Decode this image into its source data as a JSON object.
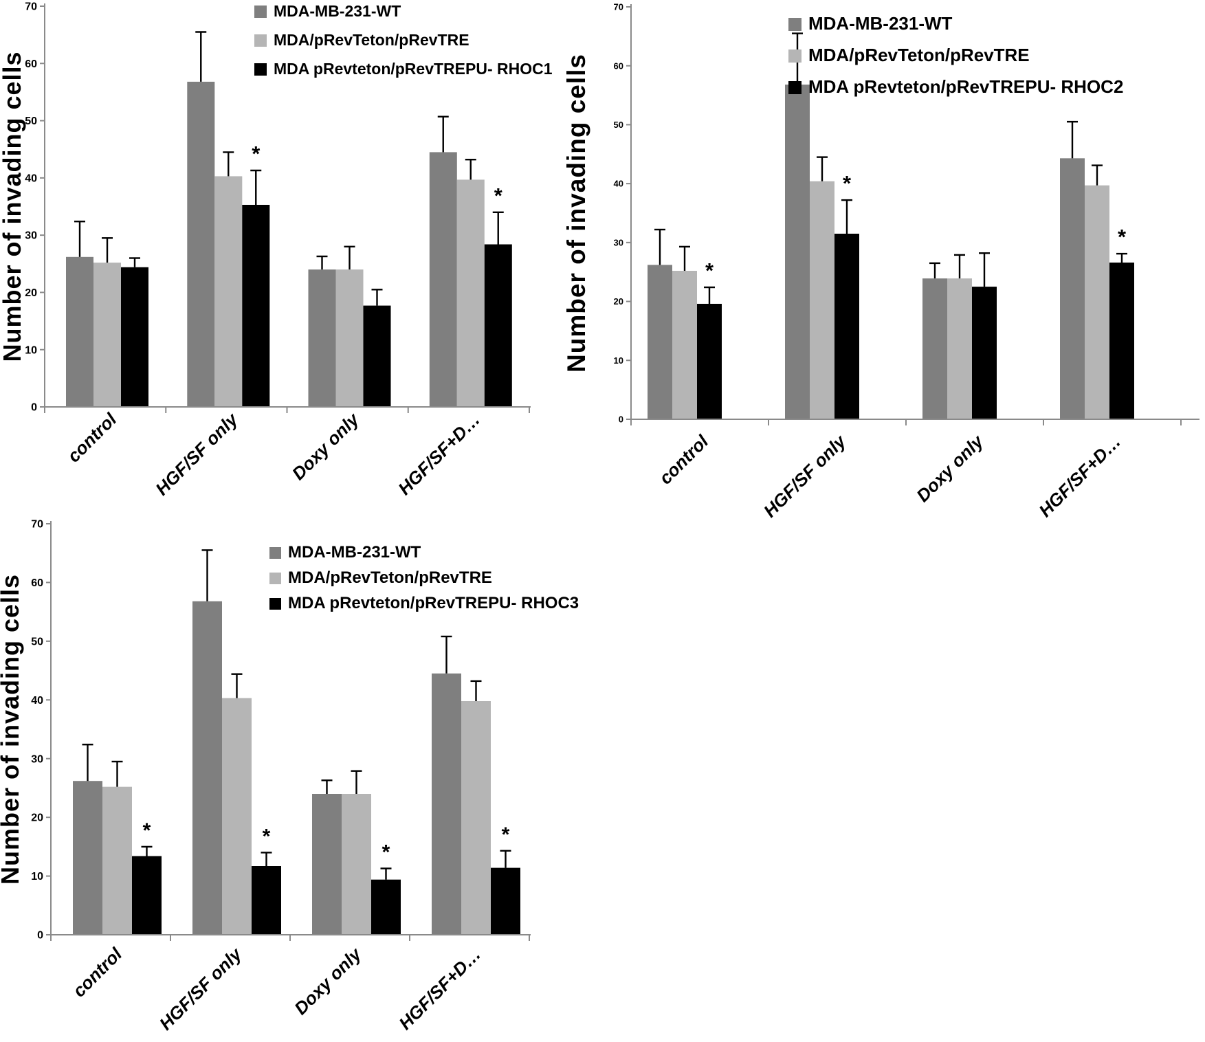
{
  "figure": {
    "description": "Three grouped bar charts of Matrigel invasion assay results with error bars and significance asterisks",
    "panels": 3
  },
  "colors": {
    "series": [
      "#7f7f7f",
      "#b5b5b5",
      "#000000"
    ],
    "axis": "#8a8a8a",
    "text": "#000000",
    "background": "#ffffff"
  },
  "chart_data": [
    {
      "id": "rhoc1",
      "type": "bar",
      "title": "",
      "xlabel": "",
      "ylabel": "Number of invading cells",
      "ylim": [
        0,
        70
      ],
      "yticks": [
        0,
        10,
        20,
        30,
        40,
        50,
        60,
        70
      ],
      "grid": false,
      "legend_position": "inside-top-right",
      "categories": [
        "control",
        "HGF/SF only",
        "Doxy only",
        "HGF/SF+D…"
      ],
      "series": [
        {
          "name": "MDA-MB-231-WT",
          "color": "#7f7f7f",
          "values": [
            26.2,
            56.8,
            24.0,
            44.5
          ],
          "errors_plus": [
            6.2,
            8.7,
            2.3,
            6.2
          ],
          "significance": [
            "",
            "",
            "",
            ""
          ]
        },
        {
          "name": "MDA/pRevTeton/pRevTRE",
          "color": "#b5b5b5",
          "values": [
            25.2,
            40.3,
            24.0,
            39.7
          ],
          "errors_plus": [
            4.3,
            4.2,
            4.0,
            3.5
          ],
          "significance": [
            "",
            "",
            "",
            ""
          ]
        },
        {
          "name": "MDA pRevteton/pRevTREPU- RHOC1",
          "color": "#000000",
          "values": [
            24.4,
            35.3,
            17.7,
            28.4
          ],
          "errors_plus": [
            1.6,
            6.0,
            2.8,
            5.6
          ],
          "significance": [
            "",
            "*",
            "",
            "*"
          ]
        }
      ]
    },
    {
      "id": "rhoc2",
      "type": "bar",
      "title": "",
      "xlabel": "",
      "ylabel": "Number of invading cells",
      "ylim": [
        0,
        70
      ],
      "yticks": [
        0,
        10,
        20,
        30,
        40,
        50,
        60,
        70
      ],
      "grid": false,
      "legend_position": "inside-top-right",
      "categories": [
        "control",
        "HGF/SF only",
        "Doxy only",
        "HGF/SF+D…"
      ],
      "series": [
        {
          "name": "MDA-MB-231-WT",
          "color": "#7f7f7f",
          "values": [
            26.2,
            56.8,
            23.9,
            44.3
          ],
          "errors_plus": [
            6.0,
            8.7,
            2.6,
            6.2
          ],
          "significance": [
            "",
            "",
            "",
            ""
          ]
        },
        {
          "name": "MDA/pRevTeton/pRevTRE",
          "color": "#b5b5b5",
          "values": [
            25.2,
            40.4,
            23.9,
            39.7
          ],
          "errors_plus": [
            4.1,
            4.1,
            4.0,
            3.4
          ],
          "significance": [
            "",
            "",
            "",
            ""
          ]
        },
        {
          "name": "MDA pRevteton/pRevTREPU- RHOC2",
          "color": "#000000",
          "values": [
            19.6,
            31.5,
            22.5,
            26.6
          ],
          "errors_plus": [
            2.8,
            5.7,
            5.7,
            1.5
          ],
          "significance": [
            "*",
            "*",
            "",
            "*"
          ]
        }
      ]
    },
    {
      "id": "rhoc3",
      "type": "bar",
      "title": "",
      "xlabel": "",
      "ylabel": "Number of invading cells",
      "ylim": [
        0,
        70
      ],
      "yticks": [
        0,
        10,
        20,
        30,
        40,
        50,
        60,
        70
      ],
      "grid": false,
      "legend_position": "inside-top-right",
      "categories": [
        "control",
        "HGF/SF only",
        "Doxy only",
        "HGF/SF+D…"
      ],
      "series": [
        {
          "name": "MDA-MB-231-WT",
          "color": "#7f7f7f",
          "values": [
            26.2,
            56.8,
            24.0,
            44.5
          ],
          "errors_plus": [
            6.2,
            8.7,
            2.3,
            6.3
          ],
          "significance": [
            "",
            "",
            "",
            ""
          ]
        },
        {
          "name": "MDA/pRevTeton/pRevTRE",
          "color": "#b5b5b5",
          "values": [
            25.2,
            40.3,
            24.0,
            39.8
          ],
          "errors_plus": [
            4.3,
            4.1,
            3.9,
            3.4
          ],
          "significance": [
            "",
            "",
            "",
            ""
          ]
        },
        {
          "name": "MDA pRevteton/pRevTREPU- RHOC3",
          "color": "#000000",
          "values": [
            13.4,
            11.7,
            9.4,
            11.4
          ],
          "errors_plus": [
            1.6,
            2.3,
            1.9,
            2.9
          ],
          "significance": [
            "*",
            "*",
            "*",
            "*"
          ]
        }
      ]
    }
  ]
}
